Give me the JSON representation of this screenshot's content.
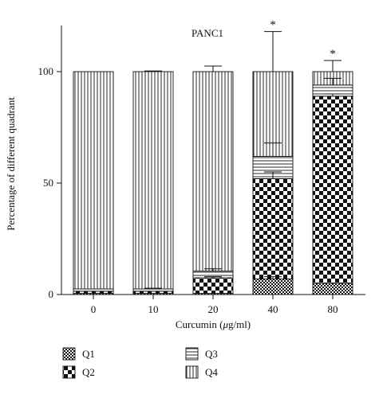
{
  "chart_data": {
    "type": "bar",
    "stacked": true,
    "title": "PANC1",
    "xlabel": "Curcumin (μg/ml)",
    "xlabel_parts": [
      "Curcumin (",
      "μ",
      "g/ml)"
    ],
    "ylabel": "Percentage of different quadrant",
    "ylim": [
      0,
      120
    ],
    "yticks": [
      0,
      50,
      100
    ],
    "categories": [
      "0",
      "10",
      "20",
      "40",
      "80"
    ],
    "series": [
      {
        "name": "Q1",
        "pattern": "fine-check",
        "values": [
          0.5,
          0.5,
          0.5,
          7,
          5
        ]
      },
      {
        "name": "Q2",
        "pattern": "coarse-check",
        "values": [
          1,
          1,
          7,
          45,
          84
        ]
      },
      {
        "name": "Q3",
        "pattern": "horizontal-lines",
        "values": [
          1,
          1,
          3,
          10,
          5
        ]
      },
      {
        "name": "Q4",
        "pattern": "vertical-lines",
        "values": [
          97.5,
          97.5,
          89.5,
          38,
          6
        ]
      }
    ],
    "errors": {
      "Q1": [
        0,
        0,
        0,
        1,
        0
      ],
      "Q2": [
        0,
        0,
        0.5,
        3,
        1
      ],
      "Q3": [
        0,
        0.3,
        1,
        6,
        3
      ],
      "Q4": [
        0,
        0.3,
        2.5,
        18,
        5
      ]
    },
    "annotations": [
      {
        "category": "40",
        "text": "*"
      },
      {
        "category": "80",
        "text": "*"
      }
    ],
    "legend": [
      "Q1",
      "Q2",
      "Q3",
      "Q4"
    ],
    "legend_placement": "bottom",
    "grid": false
  }
}
